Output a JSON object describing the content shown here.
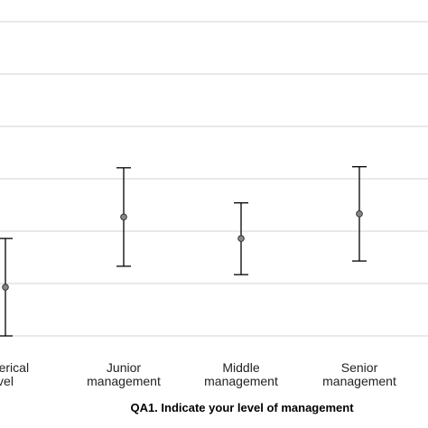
{
  "chart_data": {
    "type": "errorbar",
    "xlabel": "QA1. Indicate your level of management",
    "categories": [
      [
        "r clerical",
        "vel"
      ],
      [
        "Junior",
        "management"
      ],
      [
        "Middle",
        "management"
      ],
      [
        "Senior",
        "management"
      ]
    ],
    "points": [
      {
        "mean": 0.93,
        "lower": 0.0,
        "upper": 1.86
      },
      {
        "mean": 2.27,
        "lower": 1.33,
        "upper": 3.21
      },
      {
        "mean": 1.86,
        "lower": 1.17,
        "upper": 2.54
      },
      {
        "mean": 2.33,
        "lower": 1.43,
        "upper": 3.23
      }
    ],
    "ylim": [
      0,
      6
    ],
    "grid": true,
    "colors": {
      "grid": "#d3d3d3",
      "whisker": "#000000",
      "marker_fill": "#888888",
      "marker_stroke": "#333333"
    }
  }
}
